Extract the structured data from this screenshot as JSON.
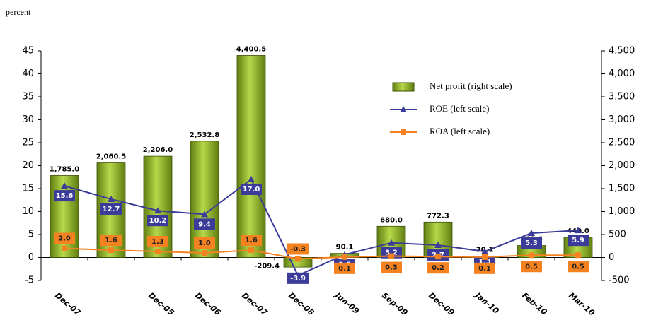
{
  "chart_data": {
    "type": "combo",
    "y_label": "percent",
    "categories": [
      "Dec-07",
      null,
      "Dec-05",
      "Dec-06",
      "Dec-07",
      "Dec-08",
      "Jun-09",
      "Sep-09",
      "Dec-09",
      "Jan-10",
      "Feb-10",
      "Mar-10"
    ],
    "series": [
      {
        "name": "Net profit (right scale)",
        "type": "bar",
        "axis": "y2",
        "color": "#8db31f",
        "values": [
          1785.0,
          2060.5,
          2206.0,
          2532.8,
          4400.5,
          -209.4,
          90.1,
          680.0,
          772.3,
          30.1,
          260.6,
          440.0
        ],
        "value_labels": [
          "1,785.0",
          "2,060.5",
          "2,206.0",
          "2,532.8",
          "4,400.5",
          "-209.4",
          "90.1",
          "680.0",
          "772.3",
          "30.1",
          "260.6",
          "440.0"
        ]
      },
      {
        "name": "ROE (left scale)",
        "type": "line",
        "axis": "y",
        "color": "#3b3b9a",
        "values": [
          15.6,
          12.7,
          10.2,
          9.4,
          17.0,
          -3.9,
          0.6,
          3.2,
          2.7,
          1.3,
          5.3,
          5.9
        ],
        "value_labels": [
          "15.6",
          "12.7",
          "10.2",
          "9.4",
          "17.0",
          "-3.9",
          "0.6",
          "3.2",
          "2.7",
          "1.3",
          "5.3",
          "5.9"
        ]
      },
      {
        "name": "ROA (left scale)",
        "type": "line",
        "axis": "y",
        "color": "#f58220",
        "values": [
          2.0,
          1.6,
          1.3,
          1.0,
          1.6,
          -0.3,
          0.1,
          0.3,
          0.2,
          0.1,
          0.5,
          0.5
        ],
        "value_labels": [
          "2.0",
          "1.6",
          "1.3",
          "1.0",
          "1.6",
          "-0.3",
          "0.1",
          "0.3",
          "0.2",
          "0.1",
          "0.5",
          "0.5"
        ]
      }
    ],
    "ylim": [
      -5,
      45
    ],
    "yticks": [
      -5,
      0,
      5,
      10,
      15,
      20,
      25,
      30,
      35,
      40,
      45
    ],
    "y2lim": [
      -500,
      4500
    ],
    "y2ticks": [
      {
        "value": -500,
        "label": "-500"
      },
      0,
      500,
      {
        "value": 1000,
        "label": "1,000"
      },
      {
        "value": 1500,
        "label": "1,500"
      },
      {
        "value": 2000,
        "label": "2,000"
      },
      {
        "value": 2500,
        "label": "2,500"
      },
      {
        "value": 3000,
        "label": "3,000"
      },
      {
        "value": 3500,
        "label": "3,500"
      },
      {
        "value": 4000,
        "label": "4,000"
      },
      {
        "value": 4500,
        "label": "4,500"
      }
    ]
  }
}
